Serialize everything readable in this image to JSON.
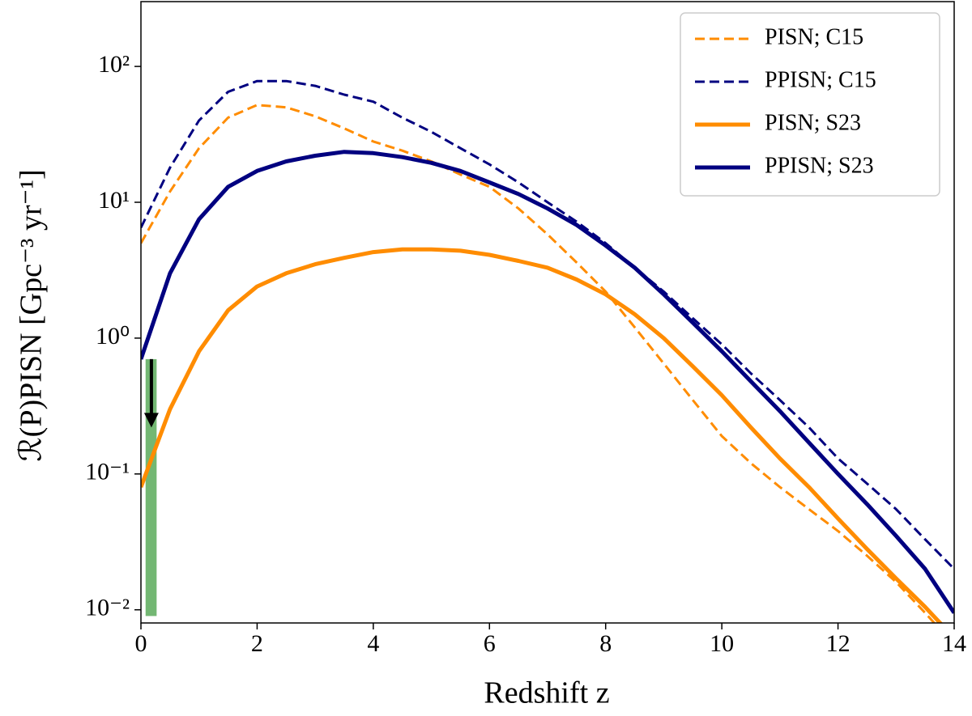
{
  "chart_data": {
    "type": "line",
    "xlabel": "Redshift z",
    "ylabel": "ℛ(P)PISN [Gpc⁻³ yr⁻¹]",
    "x": [
      0,
      0.5,
      1,
      1.5,
      2,
      2.5,
      3,
      3.5,
      4,
      4.5,
      5,
      5.5,
      6,
      6.5,
      7,
      7.5,
      8,
      8.5,
      9,
      9.5,
      10,
      10.5,
      11,
      11.5,
      12,
      12.5,
      13,
      13.5,
      14
    ],
    "series": [
      {
        "name": "PISN; C15",
        "color": "#ff8c00",
        "linestyle": "dashed",
        "values": [
          5,
          12,
          25,
          42,
          52,
          50,
          43,
          35,
          28,
          24,
          20,
          16,
          13,
          9,
          5.8,
          3.6,
          2.2,
          1.2,
          0.65,
          0.35,
          0.19,
          0.12,
          0.08,
          0.055,
          0.038,
          0.025,
          0.016,
          0.0095,
          0.0055
        ]
      },
      {
        "name": "PPISN; C15",
        "color": "#000080",
        "linestyle": "dashed",
        "values": [
          6.5,
          18,
          40,
          65,
          78,
          78,
          72,
          62,
          55,
          42,
          33,
          25,
          19,
          14,
          10,
          7.2,
          5,
          3.3,
          2.2,
          1.4,
          0.9,
          0.55,
          0.35,
          0.22,
          0.13,
          0.085,
          0.055,
          0.033,
          0.02
        ]
      },
      {
        "name": "PISN; S23",
        "color": "#ff8c00",
        "linestyle": "solid",
        "values": [
          0.08,
          0.3,
          0.8,
          1.6,
          2.4,
          3.0,
          3.5,
          3.9,
          4.3,
          4.5,
          4.5,
          4.4,
          4.1,
          3.7,
          3.3,
          2.7,
          2.1,
          1.5,
          1.0,
          0.62,
          0.38,
          0.22,
          0.13,
          0.08,
          0.047,
          0.028,
          0.017,
          0.0105,
          0.0062
        ]
      },
      {
        "name": "PPISN; S23",
        "color": "#000080",
        "linestyle": "solid",
        "values": [
          0.7,
          3,
          7.5,
          13,
          17,
          20,
          22,
          23.5,
          23,
          21.5,
          19.5,
          17,
          14,
          11.5,
          9,
          6.8,
          4.8,
          3.3,
          2.1,
          1.3,
          0.8,
          0.48,
          0.29,
          0.17,
          0.1,
          0.06,
          0.035,
          0.02,
          0.0095
        ]
      }
    ],
    "band": {
      "xlim": [
        0.08,
        0.27
      ],
      "ylim": [
        0.009,
        0.7
      ],
      "color": "#5aaa5a"
    },
    "arrow": {
      "x": 0.18,
      "from": 0.7,
      "to": 0.22,
      "color": "#000000"
    },
    "xlim": [
      0,
      14
    ],
    "xticks": [
      0,
      2,
      4,
      6,
      8,
      10,
      12,
      14
    ],
    "ylim": [
      0.008,
      300
    ],
    "yscale": "log",
    "yticks": [
      {
        "value": 0.01,
        "label": "10⁻²"
      },
      {
        "value": 0.1,
        "label": "10⁻¹"
      },
      {
        "value": 1,
        "label": "10⁰"
      },
      {
        "value": 10,
        "label": "10¹"
      },
      {
        "value": 100,
        "label": "10²"
      }
    ],
    "legend": "upper right"
  }
}
